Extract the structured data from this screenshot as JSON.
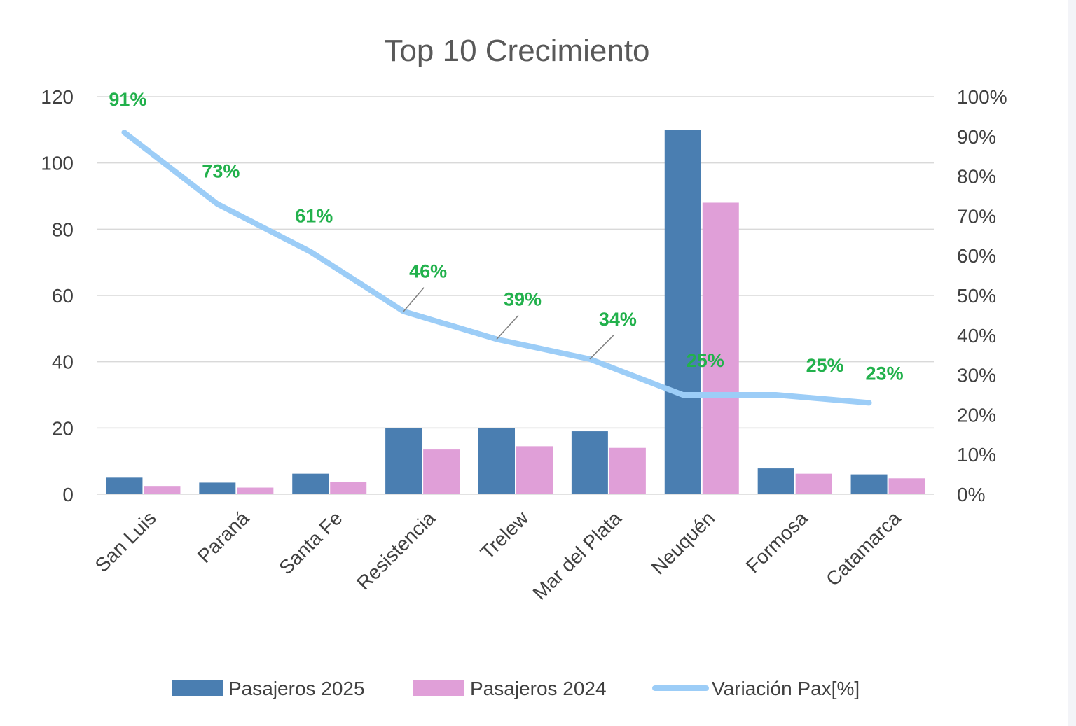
{
  "chart_data": {
    "type": "bar",
    "title": "Top 10 Crecimiento",
    "categories": [
      "San Luis",
      "Paraná",
      "Santa Fe",
      "Resistencia",
      "Trelew",
      "Mar del Plata",
      "Neuquén",
      "Formosa",
      "Catamarca"
    ],
    "series": [
      {
        "name": "Pasajeros 2025",
        "type": "bar",
        "axis": "left",
        "color": "#4a7eb1",
        "values": [
          5,
          3.5,
          6.2,
          20,
          20,
          19,
          110,
          7.8,
          6
        ]
      },
      {
        "name": "Pasajeros 2024",
        "type": "bar",
        "axis": "left",
        "color": "#e09fd8",
        "values": [
          2.5,
          2,
          3.8,
          13.5,
          14.5,
          14,
          88,
          6.2,
          4.8
        ]
      },
      {
        "name": "Variación Pax[%]",
        "type": "line",
        "axis": "right",
        "color": "#9ccdf7",
        "values": [
          91,
          73,
          61,
          46,
          39,
          34,
          25,
          25,
          23
        ],
        "labels": [
          "91%",
          "73%",
          "61%",
          "46%",
          "39%",
          "34%",
          "25%",
          "25%",
          "23%"
        ]
      }
    ],
    "ylim": [
      0,
      120
    ],
    "yticks": [
      "0",
      "20",
      "40",
      "60",
      "80",
      "100",
      "120"
    ],
    "y2lim": [
      0,
      100
    ],
    "y2ticks": [
      "0%",
      "10%",
      "20%",
      "30%",
      "40%",
      "50%",
      "60%",
      "70%",
      "80%",
      "90%",
      "100%"
    ],
    "grid": true,
    "legend": "bottom",
    "label_color": "#22b14c"
  }
}
